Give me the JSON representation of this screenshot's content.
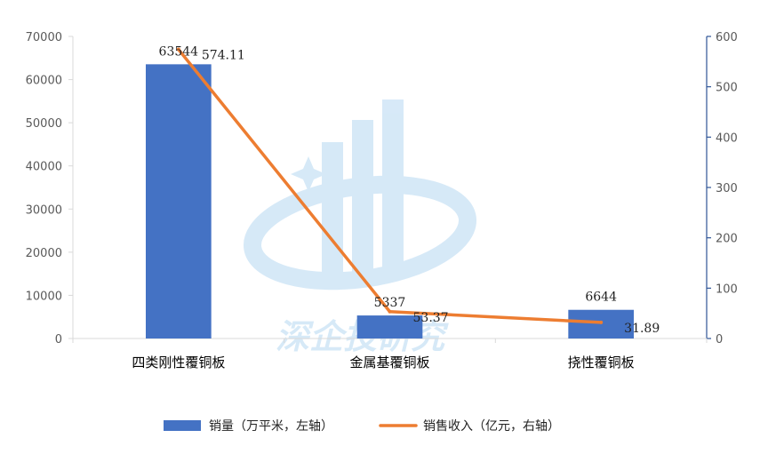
{
  "chart_data": {
    "type": "bar",
    "categories": [
      "四类刚性覆铜板",
      "金属基覆铜板",
      "挠性覆铜板"
    ],
    "series": [
      {
        "name": "销量（万平米，左轴）",
        "type": "bar",
        "axis": "left",
        "values": [
          63544,
          5337,
          6644
        ],
        "labels": [
          "63544",
          "5337",
          "6644"
        ],
        "color": "#4472C4"
      },
      {
        "name": "销售收入（亿元，右轴）",
        "type": "line",
        "axis": "right",
        "values": [
          574.11,
          53.37,
          31.89
        ],
        "labels": [
          "574.11",
          "53.37",
          "31.89"
        ],
        "color": "#ED7D31"
      }
    ],
    "y_left": {
      "min": 0,
      "max": 70000,
      "ticks": [
        "0",
        "10000",
        "20000",
        "30000",
        "40000",
        "50000",
        "60000",
        "70000"
      ]
    },
    "y_right": {
      "min": 0,
      "max": 600,
      "ticks": [
        "0",
        "100",
        "200",
        "300",
        "400",
        "500",
        "600"
      ]
    },
    "grid": false,
    "legend_position": "bottom",
    "title": "",
    "xlabel": "",
    "ylabel": ""
  },
  "watermark": {
    "text": "深企投研究"
  }
}
